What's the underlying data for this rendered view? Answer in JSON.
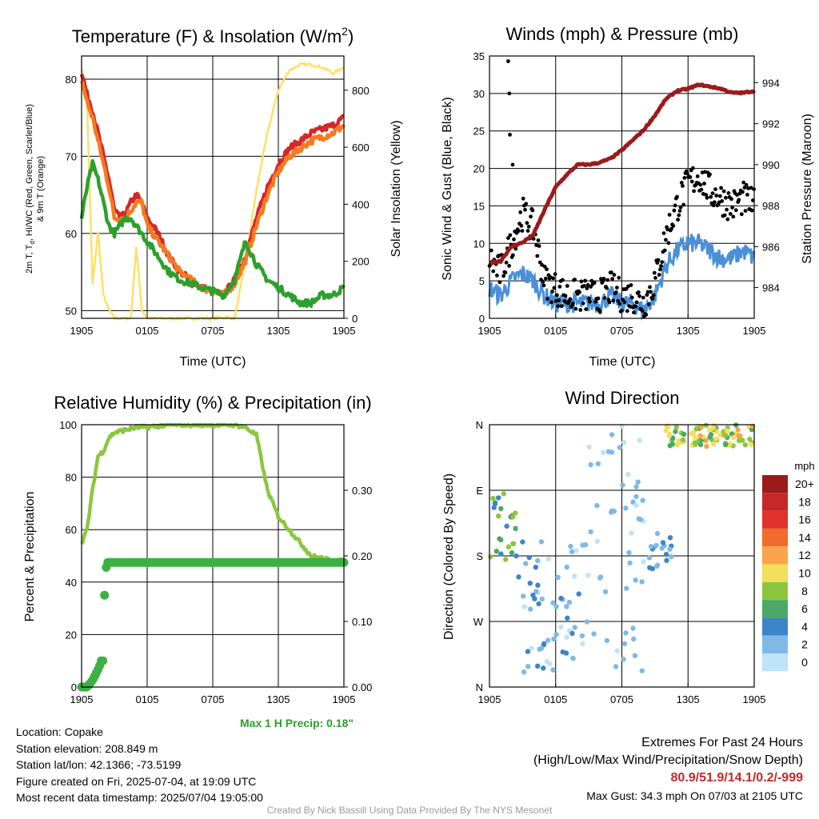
{
  "chart_data": [
    {
      "type": "line",
      "title": "Temperature (F) & Insolation (W/m²)",
      "title_main": "Temperature (F) & Insolation (W/m",
      "title_sup": "2",
      "title_end": ")",
      "xlabel": "Time (UTC)",
      "ylabel_left_line1": "2m T, T",
      "ylabel_left_sub": "d",
      "ylabel_left_line1b": ", HI/WC (Red, Green, Scarlet/Blue)",
      "ylabel_left_line2": "& 9m T (Orange)",
      "ylabel_right": "Solar Insolation (Yellow)",
      "x_ticks": [
        "1905",
        "0105",
        "0705",
        "1305",
        "1905"
      ],
      "ylim_left": [
        49,
        83
      ],
      "ylim_right": [
        0,
        920
      ],
      "y_ticks_left": [
        50,
        60,
        70,
        80
      ],
      "y_ticks_right": [
        0,
        200,
        400,
        600,
        800
      ],
      "x_hours": [
        0,
        0.5,
        1,
        1.5,
        2,
        2.5,
        3,
        3.5,
        4,
        4.5,
        5,
        5.5,
        6,
        7,
        8,
        9,
        10,
        11,
        12,
        13,
        14,
        15,
        16,
        17,
        18,
        19,
        20,
        21,
        22,
        23,
        24
      ],
      "series": [
        {
          "color": "#ffe066",
          "axis": "right",
          "values": [
            880,
            750,
            120,
            300,
            80,
            30,
            0,
            0,
            0,
            0,
            250,
            30,
            0,
            0,
            0,
            0,
            0,
            0,
            0,
            5,
            0,
            200,
            450,
            650,
            800,
            870,
            890,
            890,
            880,
            860,
            880
          ]
        },
        {
          "color": "#d62728",
          "axis": "left",
          "values": [
            81,
            78,
            76,
            73,
            70,
            67,
            63,
            62,
            62.5,
            64,
            65,
            64,
            62,
            60,
            57,
            55,
            54,
            53,
            52.5,
            52,
            54,
            57,
            62,
            66,
            69,
            71,
            72,
            73,
            73.5,
            74,
            75
          ]
        },
        {
          "color": "#f47b20",
          "axis": "left",
          "values": [
            80,
            77,
            75,
            72,
            69,
            66,
            62,
            62,
            62,
            63,
            64,
            64,
            61,
            59,
            57,
            55,
            54,
            53,
            52.5,
            52,
            53.5,
            56.5,
            61,
            65,
            68,
            70,
            71,
            72,
            72.5,
            73,
            74
          ]
        },
        {
          "color": "#2ca02c",
          "axis": "left",
          "values": [
            62,
            66,
            69,
            67,
            64,
            61,
            60,
            61,
            62,
            62,
            61,
            60,
            59,
            57,
            55,
            54,
            53.5,
            53,
            52.5,
            52,
            54,
            59,
            56,
            54,
            53,
            52,
            51,
            51,
            52,
            52,
            53
          ]
        }
      ]
    },
    {
      "type": "scatter",
      "title": "Winds (mph) & Pressure (mb)",
      "xlabel": "Time (UTC)",
      "ylabel_left": "Sonic Wind & Gust (Blue, Black)",
      "ylabel_right": "Station Pressure (Maroon)",
      "x_ticks": [
        "1905",
        "0105",
        "0705",
        "1305",
        "1905"
      ],
      "ylim_left": [
        0,
        35
      ],
      "ylim_right": [
        982.5,
        995.3
      ],
      "y_ticks_left": [
        0,
        5,
        10,
        15,
        20,
        25,
        30,
        35
      ],
      "y_ticks_right": [
        984,
        986,
        988,
        990,
        992,
        994
      ],
      "x_hours": [
        0,
        1,
        2,
        3,
        4,
        5,
        6,
        7,
        8,
        9,
        10,
        11,
        12,
        13,
        14,
        15,
        16,
        17,
        18,
        19,
        20,
        21,
        22,
        23,
        24
      ],
      "series": [
        {
          "name": "Sonic Wind",
          "color": "#4a90d9",
          "values": [
            4,
            3,
            5,
            6,
            5,
            3,
            2,
            2,
            2,
            2,
            2,
            3,
            2,
            2,
            1,
            3,
            7,
            9,
            10,
            10,
            9,
            8,
            8,
            9,
            8
          ]
        },
        {
          "name": "Gust",
          "color": "#000000",
          "values": [
            8,
            6,
            10,
            14,
            12,
            5,
            4,
            3,
            3,
            3,
            3,
            4,
            3,
            3,
            2,
            5,
            11,
            15,
            18,
            19,
            17,
            16,
            15,
            16,
            15
          ]
        },
        {
          "name": "Pressure",
          "color": "#9b1b1b",
          "values": [
            985.2,
            985.3,
            986.0,
            986.2,
            986.6,
            987.8,
            988.9,
            989.5,
            990.0,
            990.0,
            990.1,
            990.3,
            990.7,
            991.2,
            991.7,
            992.4,
            993.2,
            993.6,
            993.7,
            993.9,
            993.8,
            993.7,
            993.5,
            993.5,
            993.6
          ]
        }
      ],
      "outliers": [
        {
          "x": 1.7,
          "y": 34.3
        },
        {
          "x": 1.8,
          "y": 30
        },
        {
          "x": 1.85,
          "y": 24.5
        },
        {
          "x": 2.1,
          "y": 20.5
        }
      ]
    },
    {
      "type": "line",
      "title": "Relative Humidity (%) & Precipitation (in)",
      "ylabel": "Percent & Precipitation",
      "x_ticks": [
        "1905",
        "0105",
        "0705",
        "1305",
        "1905"
      ],
      "ylim_left": [
        0,
        100
      ],
      "ylim_right": [
        0,
        0.4
      ],
      "y_ticks_left": [
        0,
        20,
        40,
        60,
        80,
        100
      ],
      "y_ticks_right": [
        "0.00",
        "0.10",
        "0.20",
        "0.30"
      ],
      "rh_hours": [
        0,
        0.5,
        1,
        1.5,
        2,
        2.5,
        3,
        4,
        5,
        6,
        8,
        10,
        12,
        14,
        15,
        16,
        17,
        18,
        19,
        20,
        21,
        22,
        23,
        24
      ],
      "rh_values": [
        55,
        60,
        75,
        88,
        90,
        95,
        97,
        98,
        99,
        99,
        100,
        100,
        100,
        100,
        99,
        96,
        75,
        65,
        60,
        55,
        50,
        49,
        48,
        48
      ],
      "precip_hours": [
        0,
        0.5,
        1,
        1.3,
        1.6,
        1.8,
        2.0,
        2.05,
        2.1,
        2.2,
        2.4,
        3,
        4,
        5,
        6,
        7,
        8,
        9,
        10,
        11,
        12,
        13,
        14,
        15,
        16,
        17,
        18,
        19,
        20,
        21,
        22,
        23,
        24
      ],
      "precip_values": [
        0,
        0,
        0.01,
        0.02,
        0.03,
        0.04,
        0.04,
        0.11,
        0.14,
        0.18,
        0.19,
        0.19,
        0.19,
        0.19,
        0.19,
        0.19,
        0.19,
        0.19,
        0.19,
        0.19,
        0.19,
        0.19,
        0.19,
        0.19,
        0.19,
        0.19,
        0.19,
        0.19,
        0.19,
        0.19,
        0.19,
        0.19,
        0.19
      ],
      "annotation": "Max 1 H Precip: 0.18\""
    },
    {
      "type": "scatter",
      "title": "Wind Direction",
      "ylabel": "Direction (Colored By Speed)",
      "x_ticks": [
        "1905",
        "0105",
        "0705",
        "1305",
        "1905"
      ],
      "y_ticks": [
        "N",
        "W",
        "S",
        "E",
        "N"
      ],
      "legend_title": "mph",
      "legend_labels": [
        "20+",
        "18",
        "16",
        "14",
        "12",
        "10",
        "8",
        "6",
        "4",
        "2",
        "0"
      ],
      "legend_colors": [
        "#9b1b1b",
        "#c62828",
        "#e0322a",
        "#f26a2e",
        "#f9a448",
        "#f2e05c",
        "#8cc63e",
        "#4ca866",
        "#3d85c6",
        "#7fb9e6",
        "#bfe3f7"
      ]
    }
  ],
  "info": {
    "location": "Location: Copake",
    "elevation": "Station elevation: 208.849 m",
    "latlon": "Station lat/lon: 42.1366; -73.5199",
    "created": "Figure created on Fri, 2025-07-04, at 19:09 UTC",
    "recent": "Most recent data timestamp: 2025/07/04 19:05:00"
  },
  "extremes": {
    "line1": "Extremes For Past 24 Hours",
    "line2": "(High/Low/Max Wind/Precipitation/Snow Depth)",
    "values": "80.9/51.9/14.1/0.2/-999",
    "gust": "Max Gust: 34.3 mph On 07/03 at 2105 UTC"
  },
  "credit": "Created By Nick Bassill Using Data Provided By The NYS Mesonet"
}
